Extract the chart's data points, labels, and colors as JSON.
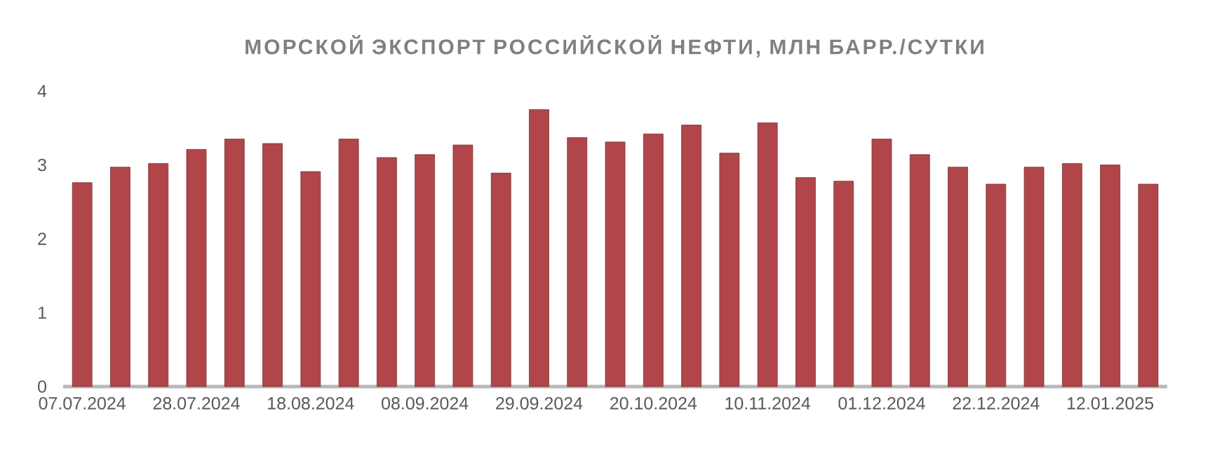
{
  "chart_data": {
    "type": "bar",
    "title": "МОРСКОЙ ЭКСПОРТ РОССИЙСКОЙ НЕФТИ, МЛН БАРР./СУТКИ",
    "categories": [
      "07.07.2024",
      null,
      null,
      "28.07.2024",
      null,
      null,
      "18.08.2024",
      null,
      null,
      "08.09.2024",
      null,
      null,
      "29.09.2024",
      null,
      null,
      "20.10.2024",
      null,
      null,
      "10.11.2024",
      null,
      null,
      "01.12.2024",
      null,
      null,
      "22.12.2024",
      null,
      null,
      "12.01.2025",
      null
    ],
    "values": [
      2.76,
      2.97,
      3.02,
      3.21,
      3.35,
      3.29,
      2.91,
      3.35,
      3.1,
      3.14,
      3.27,
      2.89,
      3.75,
      3.37,
      3.31,
      3.42,
      3.54,
      3.16,
      3.57,
      2.83,
      2.78,
      3.35,
      3.14,
      2.97,
      2.74,
      2.97,
      3.02,
      3.0,
      2.74
    ],
    "color": "#b0464a",
    "ylim": [
      0,
      4
    ],
    "yticks": [
      0,
      1,
      2,
      3,
      4
    ]
  }
}
